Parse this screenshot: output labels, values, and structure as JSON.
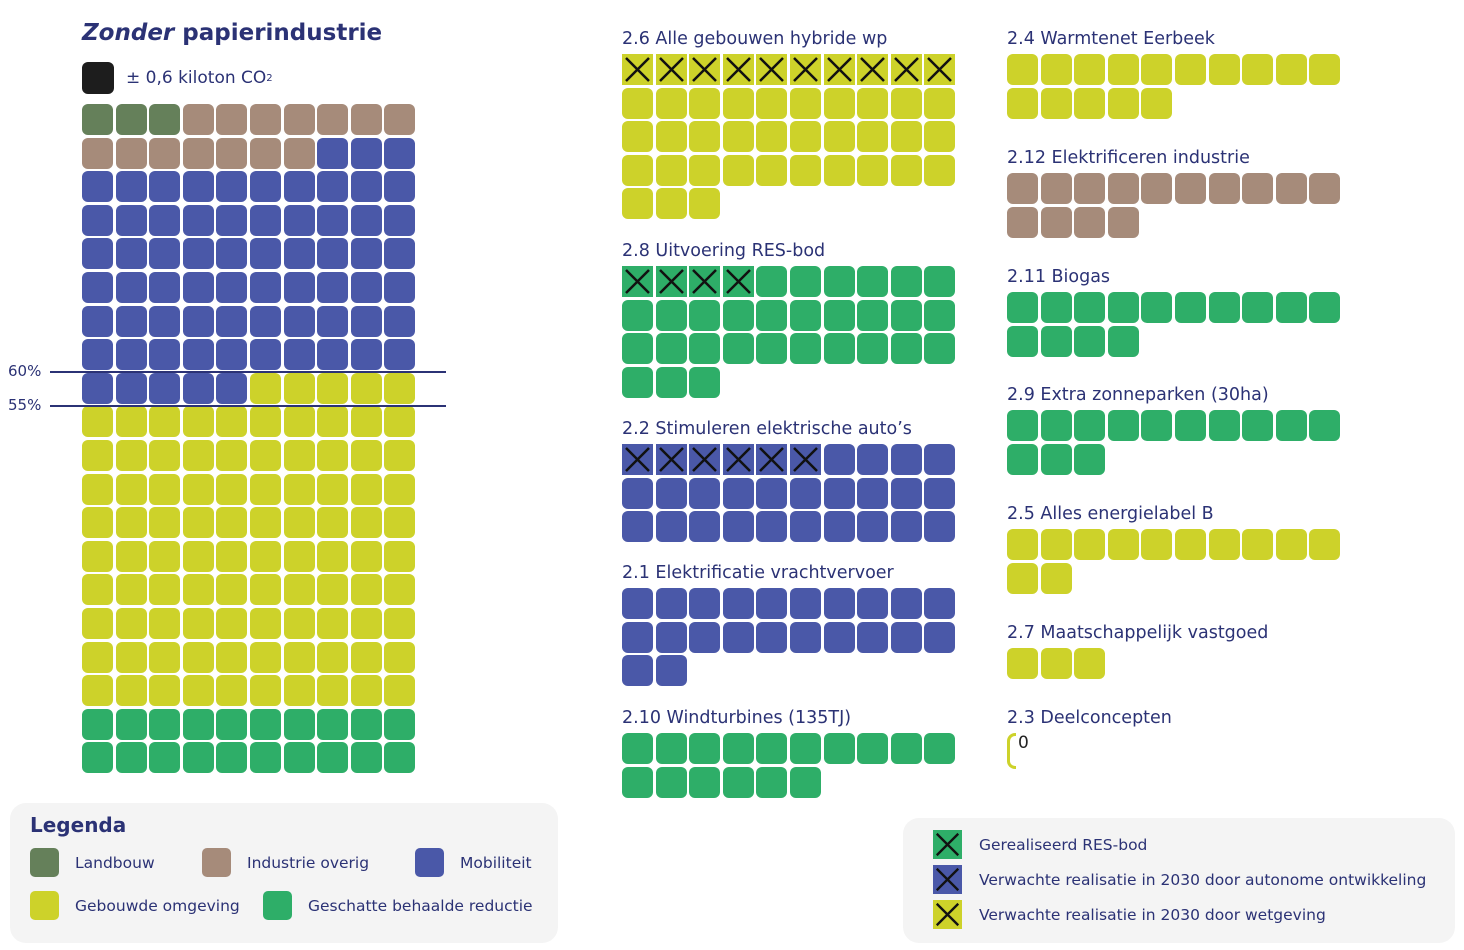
{
  "colors": {
    "Landbouw": "#65805a",
    "Industrie overig": "#a68b7a",
    "Mobiliteit": "#4a58a8",
    "Gebouwde omgeving": "#cdd22a",
    "Geschatte behaalde reductie": "#2eae68",
    "unit": "#1d1d1d",
    "text": "#2b3275"
  },
  "header": {
    "title_italic": "Zonder",
    "title_rest": " papierindustrie",
    "unit_label": "± 0,6 kiloton CO",
    "unit_sub": "2"
  },
  "chart_data": {
    "type": "waffle",
    "title": "Zonder papierindustrie",
    "unit": "± 0,6 kiloton CO2 per cell",
    "main": {
      "columns": 10,
      "segments": [
        {
          "name": "Landbouw",
          "value": 3
        },
        {
          "name": "Industrie overig",
          "value": 14
        },
        {
          "name": "Mobiliteit",
          "value": 68
        },
        {
          "name": "Gebouwde omgeving",
          "value": 95
        },
        {
          "name": "Geschatte behaalde reductie",
          "value": 20
        }
      ],
      "reference_lines": [
        {
          "label": "60%"
        },
        {
          "label": "55%"
        }
      ]
    },
    "measures": [
      {
        "label": "2.6 Alle gebouwen hybride wp",
        "category": "Gebouwde omgeving",
        "value": 43,
        "crossed": 10
      },
      {
        "label": "2.8 Uitvoering RES-bod",
        "category": "Geschatte behaalde reductie",
        "value": 33,
        "crossed": 4
      },
      {
        "label": "2.2 Stimuleren elektrische auto’s",
        "category": "Mobiliteit",
        "value": 30,
        "crossed": 6
      },
      {
        "label": "2.1 Elektrificatie vrachtvervoer",
        "category": "Mobiliteit",
        "value": 22,
        "crossed": 0
      },
      {
        "label": "2.10 Windturbines (135TJ)",
        "category": "Geschatte behaalde reductie",
        "value": 16,
        "crossed": 0
      },
      {
        "label": "2.4 Warmtenet Eerbeek",
        "category": "Gebouwde omgeving",
        "value": 15,
        "crossed": 0
      },
      {
        "label": "2.12 Elektrificeren industrie",
        "category": "Industrie overig",
        "value": 14,
        "crossed": 0
      },
      {
        "label": "2.11 Biogas",
        "category": "Geschatte behaalde reductie",
        "value": 14,
        "crossed": 0
      },
      {
        "label": "2.9 Extra zonneparken (30ha)",
        "category": "Geschatte behaalde reductie",
        "value": 13,
        "crossed": 0
      },
      {
        "label": "2.5 Alles energielabel B",
        "category": "Gebouwde omgeving",
        "value": 12,
        "crossed": 0
      },
      {
        "label": "2.7 Maatschappelijk vastgoed",
        "category": "Gebouwde omgeving",
        "value": 3,
        "crossed": 0
      },
      {
        "label": "2.3 Deelconcepten",
        "category": "Gebouwde omgeving",
        "value": 0,
        "crossed": 0,
        "zero_label": "0"
      }
    ]
  },
  "legend": {
    "title": "Legenda",
    "items": [
      "Landbouw",
      "Industrie overig",
      "Mobiliteit",
      "Gebouwde omgeving",
      "Geschatte behaalde reductie"
    ]
  },
  "legend2": {
    "items": [
      {
        "label": "Gerealiseerd RES-bod",
        "category": "Geschatte behaalde reductie"
      },
      {
        "label": "Verwachte realisatie in 2030 door autonome ontwikkeling",
        "category": "Mobiliteit"
      },
      {
        "label": "Verwachte realisatie in 2030 door wetgeving",
        "category": "Gebouwde omgeving"
      }
    ]
  }
}
